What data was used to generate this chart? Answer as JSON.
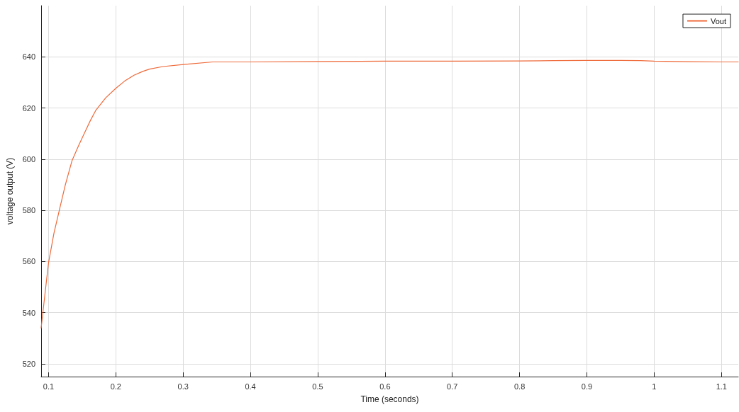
{
  "chart_data": {
    "type": "line",
    "xlabel": "Time (seconds)",
    "ylabel": "voltage output (V)",
    "xlim": [
      0.089,
      1.125
    ],
    "xticks": [
      0.1,
      0.2,
      0.3,
      0.4,
      0.5,
      0.6,
      0.7,
      0.8,
      0.9,
      1,
      1.1
    ],
    "ylim": [
      515,
      660
    ],
    "yticks": [
      520,
      540,
      560,
      580,
      600,
      620,
      640
    ],
    "grid": true,
    "legend": "top right",
    "marker": "none",
    "line_style": "solid",
    "series": [
      {
        "name": "Vout",
        "color": "#ee6a3a",
        "x": [
          0.089,
          0.092,
          0.095,
          0.1,
          0.108,
          0.116,
          0.125,
          0.135,
          0.145,
          0.153,
          0.162,
          0.17,
          0.185,
          0.2,
          0.213,
          0.227,
          0.24,
          0.25,
          0.27,
          0.3,
          0.344,
          0.4,
          0.5,
          0.6,
          0.7,
          0.8,
          0.85,
          0.9,
          0.95,
          0.98,
          1.0,
          1.05,
          1.1,
          1.125
        ],
        "values": [
          534,
          541,
          548,
          559.5,
          571,
          580,
          590,
          599.5,
          605.5,
          610,
          615,
          619,
          624,
          627.7,
          630.5,
          632.8,
          634.3,
          635.2,
          636.2,
          637,
          638,
          638,
          638.2,
          638.3,
          638.3,
          638.4,
          638.5,
          638.6,
          638.6,
          638.5,
          638.3,
          638.1,
          638,
          638
        ]
      }
    ]
  }
}
